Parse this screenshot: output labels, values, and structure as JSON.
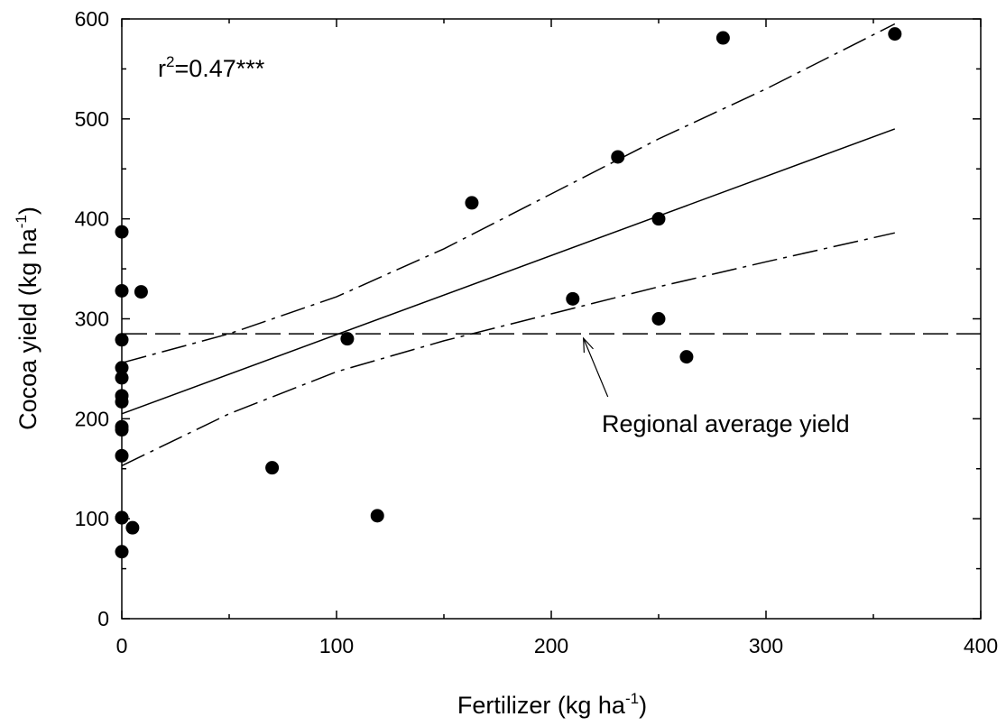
{
  "chart_data": {
    "type": "scatter",
    "xlabel": {
      "text": "Fertilizer (kg ha",
      "sup": "-1",
      "suffix": ")"
    },
    "ylabel": {
      "text": "Cocoa yield (kg ha",
      "sup": "-1",
      "suffix": ")"
    },
    "xlim": [
      0,
      400
    ],
    "ylim": [
      0,
      600
    ],
    "xticks": [
      0,
      100,
      200,
      300,
      400
    ],
    "yticks": [
      0,
      100,
      200,
      300,
      400,
      500,
      600
    ],
    "x_minor_ticks": [
      50,
      150,
      250,
      350
    ],
    "y_minor_ticks": [
      50,
      150,
      250,
      350,
      450,
      550
    ],
    "grid": false,
    "annotation": {
      "prefix": "r",
      "sup": "2",
      "rest": "=0.47***"
    },
    "series": [
      {
        "style": "filled-circle",
        "x": [
          0,
          0,
          0,
          0,
          0,
          0,
          0,
          0,
          0,
          0,
          0,
          0,
          0,
          5,
          9,
          70,
          105,
          119,
          163,
          210,
          231,
          250,
          250,
          263,
          280,
          360
        ],
        "y": [
          387,
          328,
          279,
          251,
          241,
          223,
          217,
          192,
          189,
          163,
          101,
          67,
          101,
          91,
          327,
          151,
          280,
          103,
          416,
          320,
          462,
          400,
          300,
          262,
          581,
          585
        ]
      }
    ],
    "regression": {
      "x_start": 0,
      "x_end": 360,
      "y_start": 205,
      "y_end": 490
    },
    "confidence_upper": {
      "x": [
        0,
        50,
        100,
        150,
        200,
        250,
        300,
        360
      ],
      "y": [
        256,
        285,
        322,
        370,
        425,
        480,
        530,
        595
      ]
    },
    "confidence_lower": {
      "x": [
        0,
        50,
        100,
        150,
        200,
        250,
        300,
        360
      ],
      "y": [
        153,
        205,
        247,
        278,
        305,
        332,
        357,
        386
      ]
    },
    "reference_line": {
      "y": 285,
      "label": "Regional average yield",
      "arrow_to_x": 215
    }
  }
}
